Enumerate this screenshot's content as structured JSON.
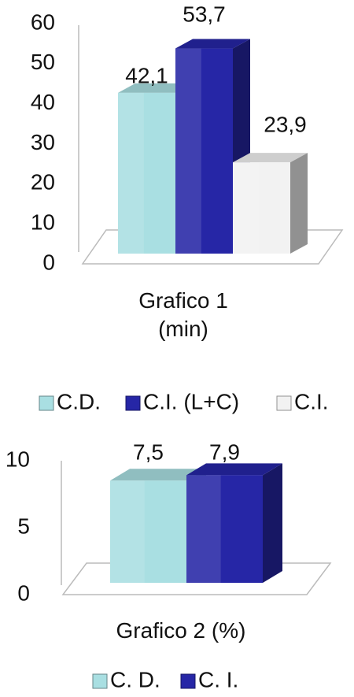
{
  "chart_data": [
    {
      "type": "bar3d",
      "categories": [
        "Grafico 1 (min)"
      ],
      "series": [
        {
          "name": "C.D.",
          "color": "#a9dfe2",
          "values": [
            42.1
          ],
          "value_labels": [
            "42,1"
          ]
        },
        {
          "name": "C.I. (L+C)",
          "color": "#2626a6",
          "values": [
            53.7
          ],
          "value_labels": [
            "53,7"
          ]
        },
        {
          "name": "C.I.",
          "color": "#f2f2f2",
          "values": [
            23.9
          ],
          "value_labels": [
            "23,9"
          ]
        }
      ],
      "ylim": [
        0,
        60
      ],
      "yticks": [
        0,
        10,
        20,
        30,
        40,
        50,
        60
      ],
      "legend": "bottom"
    },
    {
      "type": "bar3d",
      "categories": [
        "Grafico 2 (%)"
      ],
      "series": [
        {
          "name": "C. D.",
          "color": "#a9dfe2",
          "values": [
            7.5
          ],
          "value_labels": [
            "7,5"
          ]
        },
        {
          "name": "C. I.",
          "color": "#2626a6",
          "values": [
            7.9
          ],
          "value_labels": [
            "7,9"
          ]
        }
      ],
      "ylim": [
        0,
        10
      ],
      "yticks": [
        0,
        5,
        10
      ],
      "legend": "bottom"
    }
  ]
}
